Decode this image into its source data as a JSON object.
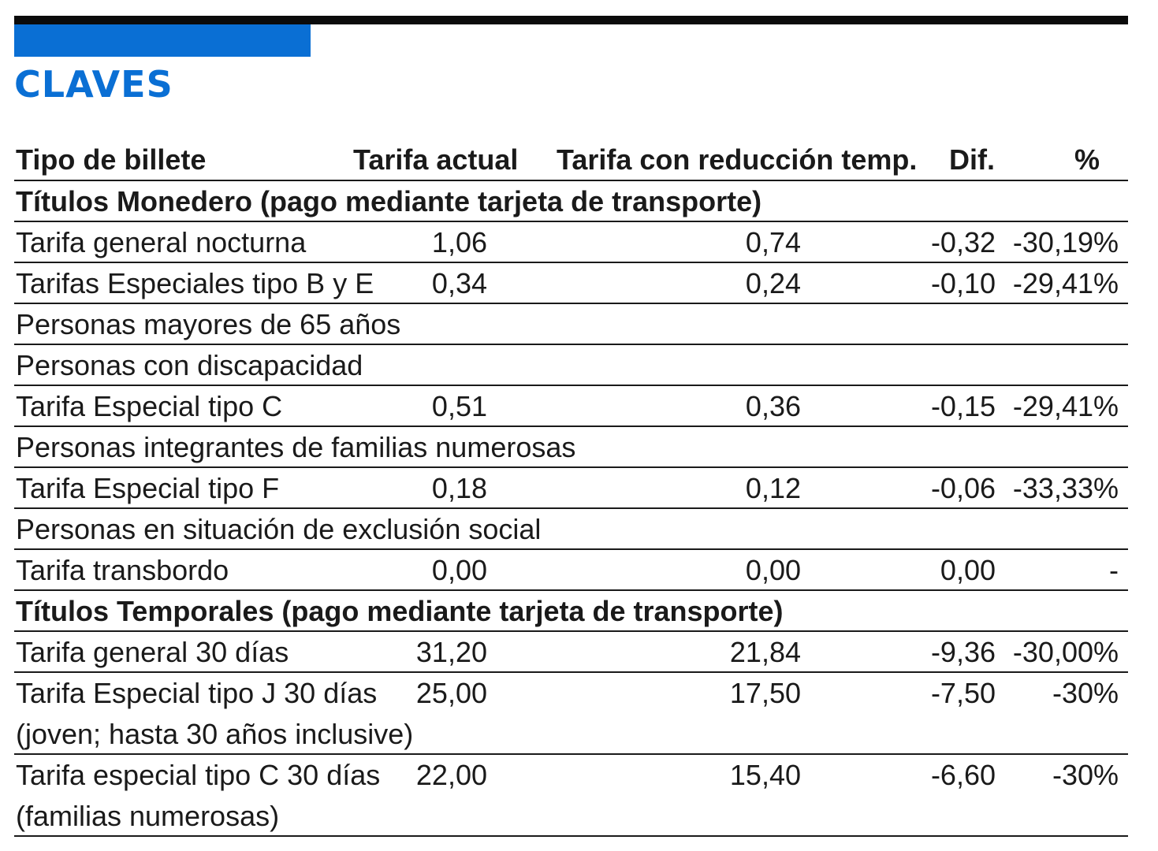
{
  "title": "CLAVES",
  "columns": {
    "name": "Tipo de billete",
    "actual": "Tarifa actual",
    "reduced": "Tarifa con reducción temp.",
    "dif": "Dif.",
    "pct": "%"
  },
  "sections": [
    {
      "heading": "Títulos Monedero (pago mediante tarjeta de transporte)",
      "rows": [
        {
          "name": "Tarifa general nocturna",
          "actual": "1,06",
          "reduced": "0,74",
          "dif": "-0,32",
          "pct": "-30,19%"
        },
        {
          "name": "Tarifas Especiales tipo B y E",
          "actual": "0,34",
          "reduced": "0,24",
          "dif": "-0,10",
          "pct": "-29,41%"
        },
        {
          "name": "Personas mayores de 65 años"
        },
        {
          "name": "Personas con discapacidad"
        },
        {
          "name": "Tarifa Especial tipo C",
          "actual": "0,51",
          "reduced": "0,36",
          "dif": "-0,15",
          "pct": "-29,41%"
        },
        {
          "name": "Personas integrantes de familias numerosas"
        },
        {
          "name": "Tarifa Especial tipo F",
          "actual": "0,18",
          "reduced": "0,12",
          "dif": "-0,06",
          "pct": "-33,33%"
        },
        {
          "name": "Personas en situación de exclusión social"
        },
        {
          "name": "Tarifa transbordo",
          "actual": "0,00",
          "reduced": "0,00",
          "dif": "0,00",
          "pct": "-"
        }
      ]
    },
    {
      "heading": "Títulos Temporales (pago mediante tarjeta de transporte)",
      "rows": [
        {
          "name": "Tarifa general 30 días",
          "actual": "31,20",
          "reduced": "21,84",
          "dif": "-9,36",
          "pct": "-30,00%"
        },
        {
          "name": "Tarifa Especial tipo J 30 días",
          "name2": "(joven; hasta 30 años inclusive)",
          "actual": "25,00",
          "reduced": "17,50",
          "dif": "-7,50",
          "pct": "-30%"
        },
        {
          "name": "Tarifa especial tipo C 30 días",
          "name2": "(familias numerosas)",
          "actual": "22,00",
          "reduced": "15,40",
          "dif": "-6,60",
          "pct": "-30%"
        }
      ]
    }
  ]
}
